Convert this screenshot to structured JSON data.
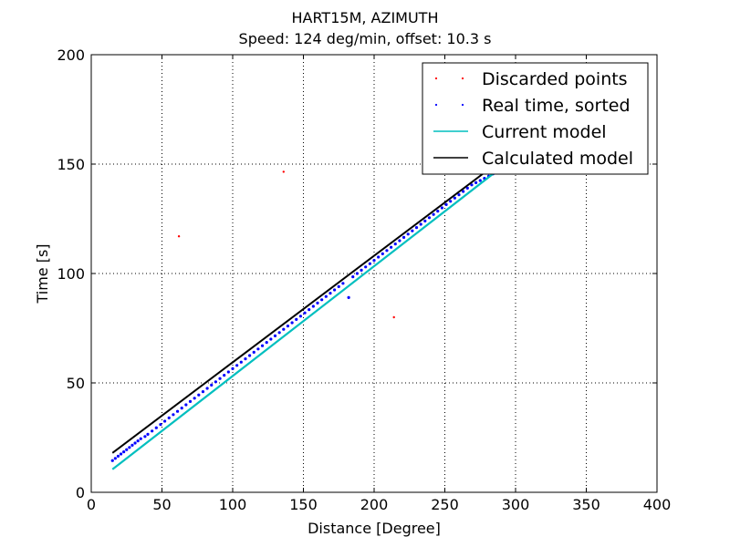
{
  "chart_data": {
    "type": "scatter",
    "title": "HART15M, AZIMUTH",
    "subtitle": "Speed: 124 deg/min, offset: 10.3 s",
    "xlabel": "Distance [Degree]",
    "ylabel": "Time [s]",
    "xlim": [
      0,
      400
    ],
    "ylim": [
      0,
      200
    ],
    "xticks": [
      0,
      50,
      100,
      150,
      200,
      250,
      300,
      350,
      400
    ],
    "yticks": [
      0,
      50,
      100,
      150,
      200
    ],
    "grid": true,
    "legend_position": "top-right",
    "series": [
      {
        "name": "Discarded points",
        "kind": "points",
        "color": "#ff0000",
        "x": [
          62,
          136,
          214
        ],
        "y": [
          117,
          146.5,
          80
        ]
      },
      {
        "name": "Real time, sorted",
        "kind": "points",
        "color": "#0000ff",
        "x": [
          15,
          17,
          19,
          21,
          23,
          25,
          27,
          29,
          31,
          33,
          35,
          38,
          40,
          43,
          46,
          49,
          52,
          55,
          58,
          61,
          64,
          67,
          70,
          73,
          76,
          79,
          82,
          85,
          88,
          91,
          94,
          97,
          100,
          103,
          106,
          109,
          112,
          115,
          118,
          121,
          124,
          127,
          130,
          133,
          136,
          139,
          142,
          145,
          148,
          151,
          154,
          157,
          160,
          163,
          166,
          169,
          172,
          175,
          178,
          182,
          185,
          188,
          191,
          194,
          197,
          200,
          203,
          206,
          209,
          212,
          215,
          218,
          221,
          224,
          227,
          230,
          233,
          236,
          239,
          242,
          245,
          248,
          251,
          254,
          257,
          260,
          263,
          266,
          269,
          272,
          275,
          278,
          281,
          284,
          286
        ],
        "y": [
          14.5,
          15.5,
          16.5,
          17.5,
          18.5,
          19.5,
          20.5,
          21.5,
          22.5,
          23.5,
          24.5,
          25.5,
          26.5,
          28,
          29.5,
          31,
          32.5,
          34,
          35.5,
          37,
          38.5,
          40,
          41.5,
          43,
          44.5,
          46,
          47.5,
          49,
          50.5,
          52,
          53.5,
          55,
          56.5,
          58,
          59.5,
          61,
          62.5,
          64,
          65.5,
          67,
          68.5,
          70,
          71.5,
          73,
          74.5,
          76,
          77.5,
          79,
          80.5,
          82,
          83.5,
          85,
          86.5,
          88,
          89.5,
          91,
          92.5,
          94,
          95.5,
          89,
          98.5,
          100,
          101.5,
          103,
          104.5,
          106,
          107.5,
          109,
          110.5,
          112,
          113.5,
          115,
          116.5,
          118,
          119.5,
          121,
          122.5,
          124,
          125.5,
          127,
          128.5,
          130,
          131.5,
          133,
          134.5,
          136,
          137.5,
          139,
          140.5,
          141.5,
          142.5,
          143.5,
          144.5,
          145.5,
          146.5
        ]
      },
      {
        "name": "Current model",
        "kind": "line",
        "color": "#00bfbf",
        "x": [
          15,
          286
        ],
        "y": [
          10.5,
          146.5
        ]
      },
      {
        "name": "Calculated model",
        "kind": "line",
        "color": "#000000",
        "x": [
          15,
          286
        ],
        "y": [
          18,
          150
        ]
      }
    ]
  }
}
